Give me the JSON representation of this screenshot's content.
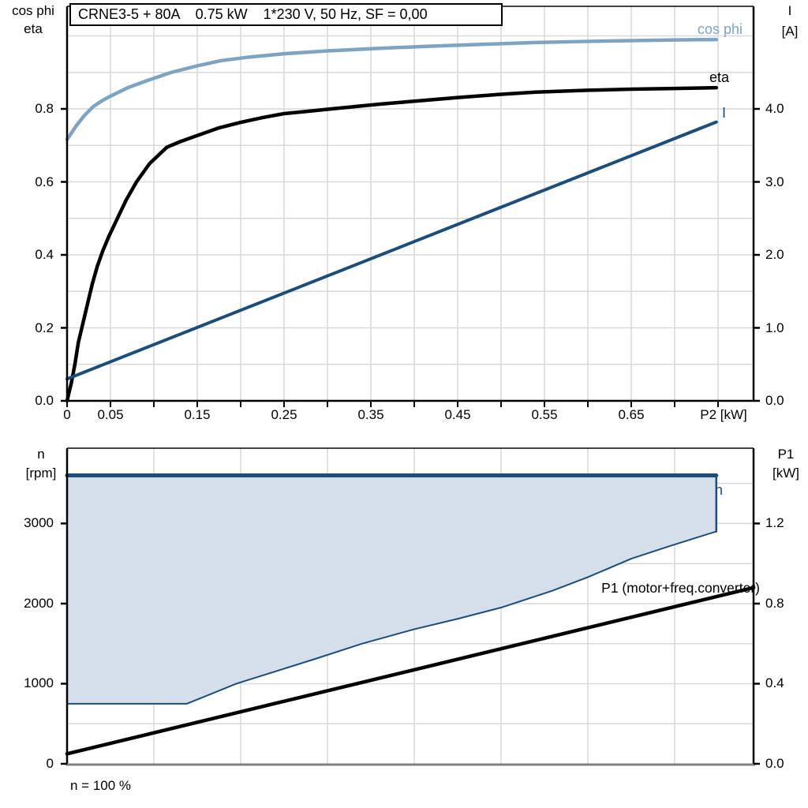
{
  "title": "CRNE3-5 + 80A    0.75 kW    1*230 V, 50 Hz, SF = 0,00",
  "footer_note": "n = 100 %",
  "colors": {
    "dark_blue": "#1b4e79",
    "light_blue": "#7ea4c4",
    "region_fill": "#d4dfe9",
    "grid": "#d9d9d9",
    "axis": "#000000",
    "bottom_axis": "#808080"
  },
  "curve_labels": {
    "cos_phi": "cos phi",
    "eta": "eta",
    "current": "I",
    "speed": "n",
    "p1": "P1 (motor+freq.converter)"
  },
  "chart_data": [
    {
      "type": "line",
      "name": "motor electrical curves",
      "x_axis": {
        "title": "P2 [kW]",
        "min": 0,
        "max": 0.791,
        "grid_step": 0.05,
        "minor_tick_step": 0.05,
        "ticks": [
          {
            "v": 0,
            "label": "0"
          },
          {
            "v": 0.05,
            "label": "0.05"
          },
          {
            "v": 0.15,
            "label": "0.15"
          },
          {
            "v": 0.25,
            "label": "0.25"
          },
          {
            "v": 0.35,
            "label": "0.35"
          },
          {
            "v": 0.45,
            "label": "0.45"
          },
          {
            "v": 0.55,
            "label": "0.55"
          },
          {
            "v": 0.65,
            "label": "0.65"
          }
        ]
      },
      "y_left_axis": {
        "title": [
          "cos phi",
          "eta"
        ],
        "min": 0,
        "max": 1.081,
        "grid_step": 0.1,
        "ticks": [
          {
            "v": 0,
            "label": "0.0"
          },
          {
            "v": 0.2,
            "label": "0.2"
          },
          {
            "v": 0.4,
            "label": "0.4"
          },
          {
            "v": 0.6,
            "label": "0.6"
          },
          {
            "v": 0.8,
            "label": "0.8"
          }
        ]
      },
      "y_right_axis": {
        "title": [
          "I",
          "[A]"
        ],
        "min": 0,
        "max": 5.405,
        "ticks": [
          {
            "v": 0,
            "label": "0.0"
          },
          {
            "v": 1,
            "label": "1.0"
          },
          {
            "v": 2,
            "label": "2.0"
          },
          {
            "v": 3,
            "label": "3.0"
          },
          {
            "v": 4,
            "label": "4.0"
          }
        ]
      },
      "series": [
        {
          "name": "cos phi",
          "axis": "left",
          "color": "light_blue",
          "width": 4.5,
          "points": [
            [
              0,
              0.716
            ],
            [
              0.01,
              0.752
            ],
            [
              0.02,
              0.782
            ],
            [
              0.03,
              0.806
            ],
            [
              0.04,
              0.822
            ],
            [
              0.05,
              0.835
            ],
            [
              0.07,
              0.858
            ],
            [
              0.093,
              0.878
            ],
            [
              0.12,
              0.9
            ],
            [
              0.15,
              0.918
            ],
            [
              0.177,
              0.932
            ],
            [
              0.21,
              0.942
            ],
            [
              0.25,
              0.951
            ],
            [
              0.3,
              0.959
            ],
            [
              0.36,
              0.966
            ],
            [
              0.42,
              0.972
            ],
            [
              0.48,
              0.977
            ],
            [
              0.54,
              0.982
            ],
            [
              0.6,
              0.985
            ],
            [
              0.65,
              0.987
            ],
            [
              0.7,
              0.989
            ],
            [
              0.748,
              0.99
            ]
          ]
        },
        {
          "name": "eta",
          "axis": "left",
          "color": "axis",
          "width": 4.5,
          "points": [
            [
              0,
              0
            ],
            [
              0.005,
              0.05
            ],
            [
              0.009,
              0.1
            ],
            [
              0.013,
              0.16
            ],
            [
              0.018,
              0.21
            ],
            [
              0.024,
              0.27
            ],
            [
              0.029,
              0.32
            ],
            [
              0.035,
              0.37
            ],
            [
              0.041,
              0.41
            ],
            [
              0.048,
              0.45
            ],
            [
              0.058,
              0.5
            ],
            [
              0.068,
              0.55
            ],
            [
              0.08,
              0.6
            ],
            [
              0.095,
              0.65
            ],
            [
              0.115,
              0.695
            ],
            [
              0.13,
              0.71
            ],
            [
              0.15,
              0.727
            ],
            [
              0.175,
              0.748
            ],
            [
              0.2,
              0.763
            ],
            [
              0.225,
              0.776
            ],
            [
              0.25,
              0.787
            ],
            [
              0.28,
              0.794
            ],
            [
              0.3,
              0.799
            ],
            [
              0.33,
              0.806
            ],
            [
              0.36,
              0.813
            ],
            [
              0.4,
              0.821
            ],
            [
              0.45,
              0.831
            ],
            [
              0.5,
              0.84
            ],
            [
              0.54,
              0.846
            ],
            [
              0.6,
              0.851
            ],
            [
              0.65,
              0.854
            ],
            [
              0.7,
              0.856
            ],
            [
              0.748,
              0.858
            ]
          ]
        },
        {
          "name": "I",
          "axis": "right",
          "color": "dark_blue",
          "width": 4,
          "points": [
            [
              0,
              0.3
            ],
            [
              0.748,
              3.82
            ]
          ]
        }
      ]
    },
    {
      "type": "area+line",
      "name": "speed range and input power",
      "x_axis": {
        "title": "",
        "min": 0,
        "max": 0.791,
        "grid_step": 0.1
      },
      "y_left_axis": {
        "title": [
          "n",
          "[rpm]"
        ],
        "min": 0,
        "max": 3940,
        "grid_step": 500,
        "ticks": [
          {
            "v": 0,
            "label": "0"
          },
          {
            "v": 1000,
            "label": "1000"
          },
          {
            "v": 2000,
            "label": "2000"
          },
          {
            "v": 3000,
            "label": "3000"
          }
        ]
      },
      "y_right_axis": {
        "title": [
          "P1",
          "[kW]"
        ],
        "min": 0,
        "max": 1.576,
        "ticks": [
          {
            "v": 0,
            "label": "0.0"
          },
          {
            "v": 0.4,
            "label": "0.4"
          },
          {
            "v": 0.8,
            "label": "0.8"
          },
          {
            "v": 1.2,
            "label": "1.2"
          }
        ]
      },
      "speed_region": {
        "label": "n",
        "upper": [
          [
            0,
            3600
          ],
          [
            0.748,
            3600
          ]
        ],
        "right_drop": [
          [
            0.748,
            3600
          ],
          [
            0.748,
            2900
          ]
        ],
        "lower": [
          [
            0,
            750
          ],
          [
            0.138,
            750
          ],
          [
            0.195,
            1000
          ],
          [
            0.286,
            1310
          ],
          [
            0.34,
            1500
          ],
          [
            0.4,
            1680
          ],
          [
            0.45,
            1810
          ],
          [
            0.5,
            1950
          ],
          [
            0.559,
            2160
          ],
          [
            0.6,
            2330
          ],
          [
            0.65,
            2560
          ],
          [
            0.695,
            2720
          ],
          [
            0.73,
            2840
          ],
          [
            0.748,
            2900
          ]
        ]
      },
      "series": [
        {
          "name": "P1 (motor+freq.converter)",
          "axis": "right",
          "color": "axis",
          "width": 4.5,
          "points": [
            [
              0,
              0.05
            ],
            [
              0.791,
              0.88
            ]
          ]
        }
      ]
    }
  ]
}
